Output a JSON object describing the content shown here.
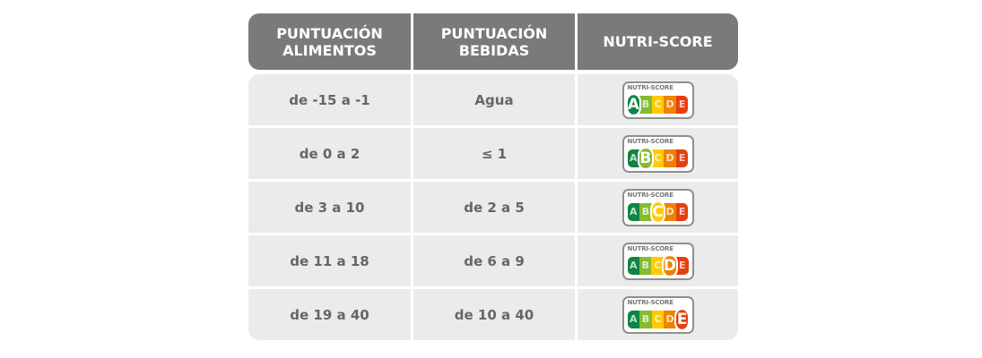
{
  "header": {
    "col1": "PUNTUACIÓN\nALIMENTOS",
    "col2": "PUNTUACIÓN\nBEBIDAS",
    "col3": "NUTRI-SCORE"
  },
  "badge": {
    "title": "NUTRI-SCORE",
    "letters": [
      "A",
      "B",
      "C",
      "D",
      "E"
    ],
    "colors": [
      "#0f8443",
      "#84bb2f",
      "#fecb03",
      "#ee8201",
      "#e63e10"
    ]
  },
  "rows": [
    {
      "alimentos": "de -15 a -1",
      "bebidas": "Agua",
      "score": "A"
    },
    {
      "alimentos": "de 0 a 2",
      "bebidas": "≤ 1",
      "score": "B"
    },
    {
      "alimentos": "de 3 a 10",
      "bebidas": "de 2 a 5",
      "score": "C"
    },
    {
      "alimentos": "de 11 a 18",
      "bebidas": "de 6 a 9",
      "score": "D"
    },
    {
      "alimentos": "de 19 a 40",
      "bebidas": "de 10 a 40",
      "score": "E"
    }
  ]
}
